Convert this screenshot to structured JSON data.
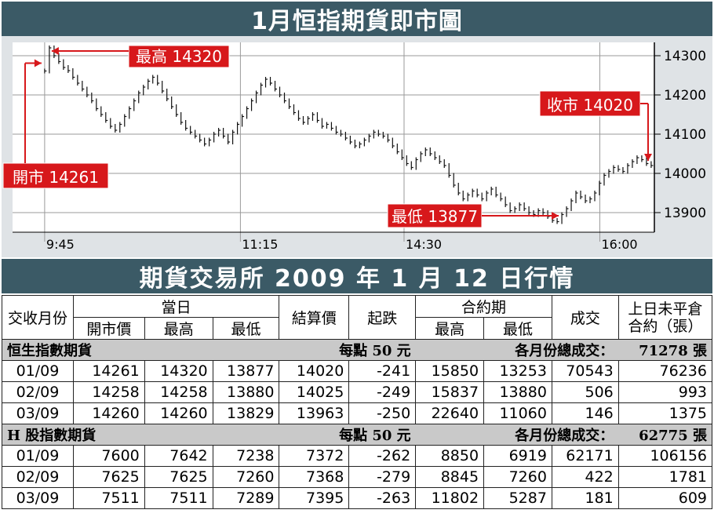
{
  "title": "1月恒指期貨即市圖",
  "chart_data": {
    "type": "line",
    "y_ticks": [
      "14300",
      "14200",
      "14100",
      "14000",
      "13900"
    ],
    "ylim": [
      13850,
      14330
    ],
    "x_ticks": [
      "9:45",
      "11:15",
      "14:30",
      "16:00"
    ],
    "series": [
      {
        "values": [
          14261,
          14320,
          14300,
          14285,
          14270,
          14262,
          14245,
          14230,
          14215,
          14200,
          14185,
          14165,
          14150,
          14135,
          14120,
          14110,
          14125,
          14145,
          14165,
          14185,
          14205,
          14220,
          14235,
          14245,
          14230,
          14210,
          14190,
          14170,
          14150,
          14130,
          14115,
          14105,
          14095,
          14085,
          14075,
          14085,
          14100,
          14110,
          14095,
          14080,
          14105,
          14125,
          14145,
          14165,
          14185,
          14205,
          14225,
          14240,
          14230,
          14215,
          14200,
          14185,
          14170,
          14155,
          14140,
          14130,
          14140,
          14150,
          14135,
          14120,
          14125,
          14115,
          14105,
          14100,
          14090,
          14080,
          14070,
          14075,
          14085,
          14095,
          14105,
          14100,
          14095,
          14085,
          14070,
          14055,
          14040,
          14025,
          14015,
          14035,
          14050,
          14060,
          14050,
          14040,
          14030,
          14020,
          13995,
          13970,
          13950,
          13935,
          13945,
          13955,
          13945,
          13935,
          13950,
          13960,
          13945,
          13935,
          13920,
          13905,
          13910,
          13920,
          13910,
          13900,
          13895,
          13905,
          13900,
          13890,
          13880,
          13877,
          13895,
          13910,
          13930,
          13950,
          13940,
          13930,
          13935,
          13950,
          13975,
          13995,
          14005,
          14015,
          14010,
          14005,
          14020,
          14030,
          14040,
          14035,
          14025,
          14020
        ]
      }
    ],
    "annotations": [
      {
        "label": "最高 14320",
        "value": 14320
      },
      {
        "label": "開市 14261",
        "value": 14261
      },
      {
        "label": "收市 14020",
        "value": 14020
      },
      {
        "label": "最低 13877",
        "value": 13877
      }
    ]
  },
  "section_title": "期貨交易所 2009 年 1 月 12 日行情",
  "table": {
    "h_month": "交收月份",
    "h_today": "當日",
    "h_open": "開市價",
    "h_high": "最高",
    "h_low": "最低",
    "h_settle": "結算價",
    "h_change": "起跌",
    "h_contract": "合約期",
    "h_c_high": "最高",
    "h_c_low": "最低",
    "h_volume": "成交",
    "h_oi_line1": "上日未平倉",
    "h_oi_line2": "合約（張）",
    "groups": [
      {
        "name": "恒生指數期貨",
        "unit": "每點 50 元",
        "total_label": "各月份總成交：",
        "total": "71278 張",
        "rows": [
          [
            "01/09",
            "14261",
            "14320",
            "13877",
            "14020",
            "-241",
            "15850",
            "13253",
            "70543",
            "76236"
          ],
          [
            "02/09",
            "14258",
            "14258",
            "13880",
            "14025",
            "-249",
            "15837",
            "13880",
            "506",
            "993"
          ],
          [
            "03/09",
            "14260",
            "14260",
            "13829",
            "13963",
            "-250",
            "22640",
            "11060",
            "146",
            "1375"
          ]
        ]
      },
      {
        "name": "H 股指數期貨",
        "unit": "每點 50 元",
        "total_label": "各月份總成交：",
        "total": "62775 張",
        "rows": [
          [
            "01/09",
            "7600",
            "7642",
            "7238",
            "7372",
            "-262",
            "8850",
            "6919",
            "62171",
            "106156"
          ],
          [
            "02/09",
            "7625",
            "7625",
            "7260",
            "7368",
            "-279",
            "8845",
            "7260",
            "422",
            "1781"
          ],
          [
            "03/09",
            "7511",
            "7511",
            "7289",
            "7395",
            "-263",
            "11802",
            "5287",
            "181",
            "609"
          ]
        ]
      }
    ]
  }
}
